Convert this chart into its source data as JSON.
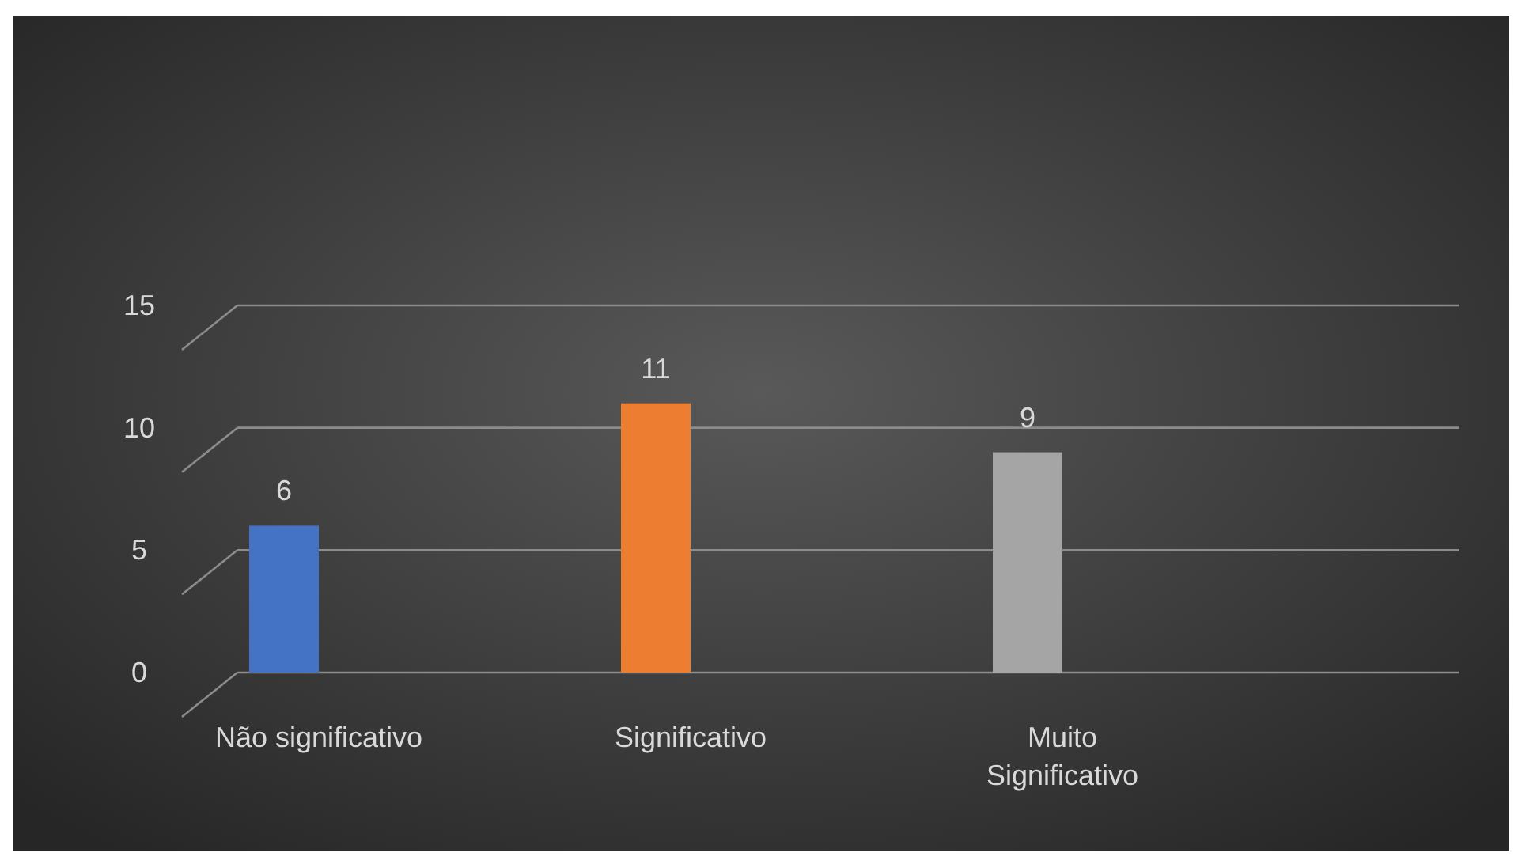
{
  "chart_data": {
    "type": "bar",
    "categories": [
      "Não significativo",
      "Significativo",
      "Muito Significativo"
    ],
    "values": [
      6,
      11,
      9
    ],
    "colors": [
      "#4472c4",
      "#ed7d31",
      "#a5a5a5"
    ],
    "ylim": [
      0,
      15
    ],
    "yticks": [
      0,
      5,
      10,
      15
    ],
    "grid": "y",
    "data_labels": true
  }
}
